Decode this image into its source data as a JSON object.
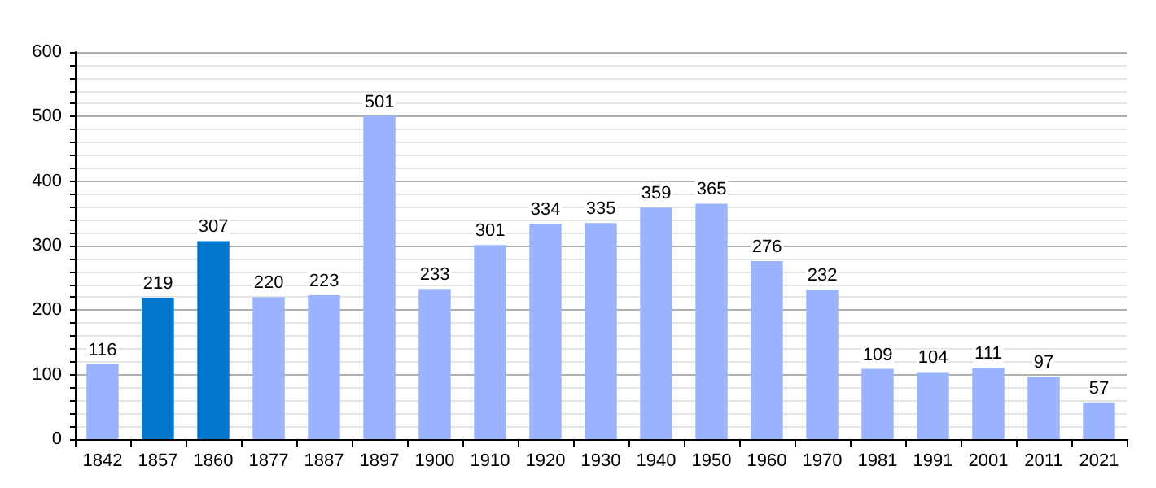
{
  "chart_data": {
    "type": "bar",
    "categories": [
      "1842",
      "1857",
      "1860",
      "1877",
      "1887",
      "1897",
      "1900",
      "1910",
      "1920",
      "1930",
      "1940",
      "1950",
      "1960",
      "1970",
      "1981",
      "1991",
      "2001",
      "2011",
      "2021"
    ],
    "values": [
      116,
      219,
      307,
      220,
      223,
      501,
      233,
      301,
      334,
      335,
      359,
      365,
      276,
      232,
      109,
      104,
      111,
      97,
      57
    ],
    "colors": [
      "#99b3ff",
      "#0077cc",
      "#0077cc",
      "#99b3ff",
      "#99b3ff",
      "#99b3ff",
      "#99b3ff",
      "#99b3ff",
      "#99b3ff",
      "#99b3ff",
      "#99b3ff",
      "#99b3ff",
      "#99b3ff",
      "#99b3ff",
      "#99b3ff",
      "#99b3ff",
      "#99b3ff",
      "#99b3ff",
      "#99b3ff"
    ],
    "ylim": [
      0,
      600
    ],
    "yticks": [
      0,
      {
        "value": 20,
        "label": null
      },
      {
        "value": 40,
        "label": null
      },
      {
        "value": 60,
        "label": null
      },
      {
        "value": 80,
        "label": null
      },
      100,
      {
        "value": 120,
        "label": null
      },
      {
        "value": 140,
        "label": null
      },
      {
        "value": 160,
        "label": null
      },
      {
        "value": 180,
        "label": null
      },
      200,
      {
        "value": 220,
        "label": null
      },
      {
        "value": 240,
        "label": null
      },
      {
        "value": 260,
        "label": null
      },
      {
        "value": 280,
        "label": null
      },
      300,
      {
        "value": 320,
        "label": null
      },
      {
        "value": 340,
        "label": null
      },
      {
        "value": 360,
        "label": null
      },
      {
        "value": 380,
        "label": null
      },
      400,
      {
        "value": 420,
        "label": null
      },
      {
        "value": 440,
        "label": null
      },
      {
        "value": 460,
        "label": null
      },
      {
        "value": 480,
        "label": null
      },
      500,
      {
        "value": 520,
        "label": null
      },
      {
        "value": 540,
        "label": null
      },
      {
        "value": 560,
        "label": null
      },
      {
        "value": 580,
        "label": null
      },
      600
    ],
    "grid": true,
    "data_labels": true
  }
}
